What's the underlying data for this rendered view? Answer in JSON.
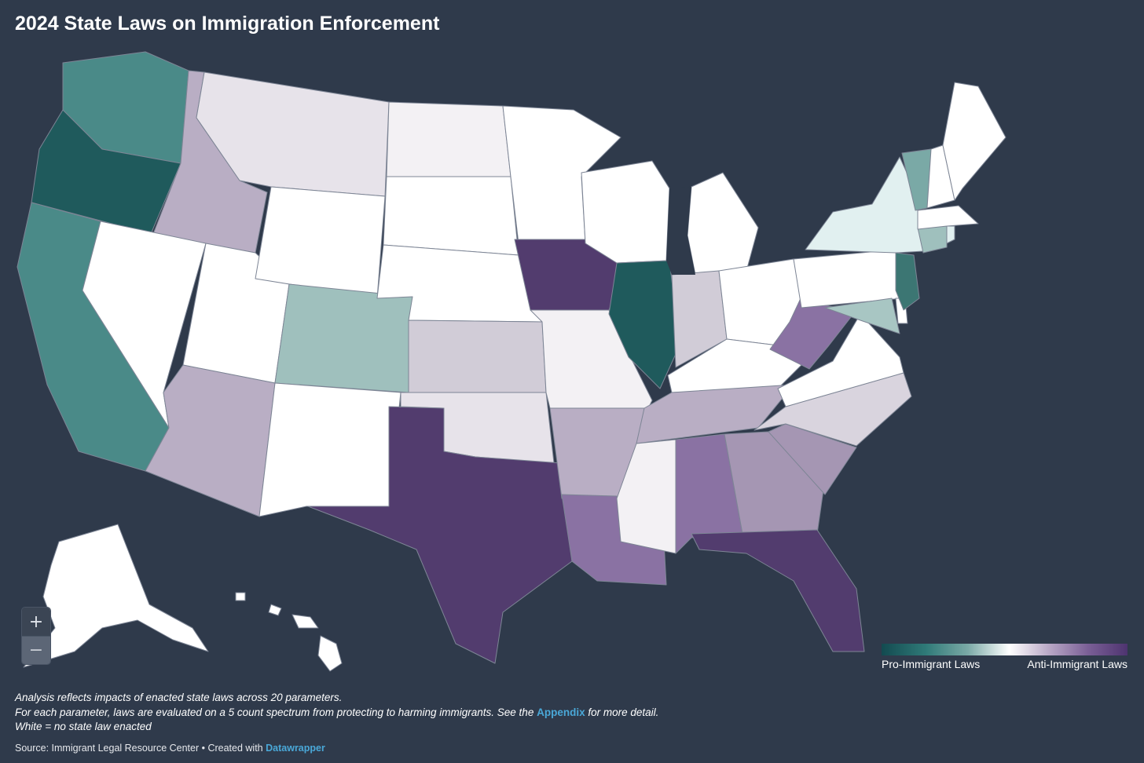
{
  "title": "2024 State Laws on Immigration Enforcement",
  "zoom": {
    "in_label": "+",
    "out_label": "−"
  },
  "legend": {
    "left_label": "Pro-Immigrant Laws",
    "right_label": "Anti-Immigrant Laws"
  },
  "notes": {
    "line1": "Analysis reflects impacts of enacted state laws across 20 parameters.",
    "line2_before": "For each parameter, laws are evaluated on a 5 count spectrum from protecting to harming immigrants. See the",
    "line2_link": "Appendix",
    "line2_after": "for more detail.",
    "line3": "White = no state law enacted"
  },
  "source": {
    "text": "Source: Immigrant Legal Resource Center • Created with",
    "link": "Datawrapper"
  },
  "colors": {
    "background": "#2f3a4b",
    "pro_strong": "#1f5a5c",
    "pro_mid": "#4a8a88",
    "pro_light": "#9fc0bd",
    "pro_faint": "#e1f0f0",
    "neutral_none": "#ffffff",
    "anti_faint": "#e7e3ea",
    "anti_light": "#b9aec4",
    "anti_mid": "#8a72a3",
    "anti_strong": "#523c6e",
    "link": "#4aa8d8"
  }
}
